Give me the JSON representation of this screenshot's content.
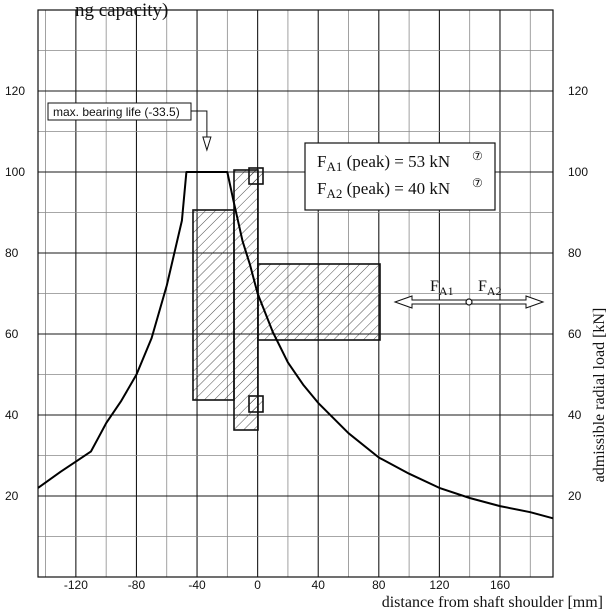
{
  "header": {
    "fragment": "ng capacity)"
  },
  "chart_data": {
    "type": "line",
    "title": "",
    "xlabel": "distance from shaft shoulder [mm]",
    "ylabel": "admissible radial load [kN]",
    "xlim": [
      -145,
      195
    ],
    "ylim": [
      0,
      140
    ],
    "grid": true,
    "x_ticks": [
      -120,
      -80,
      -40,
      0,
      40,
      80,
      120,
      160
    ],
    "x_tick_labels": [
      "-120",
      "-80",
      "-40",
      "0",
      "40",
      "80",
      "120",
      "160"
    ],
    "y_ticks": [
      20,
      40,
      60,
      80,
      100,
      120
    ],
    "y_tick_labels": [
      "20",
      "40",
      "60",
      "80",
      "100",
      "120"
    ],
    "series": [
      {
        "x": [
          -145,
          -130,
          -120,
          -110,
          -105,
          -100,
          -90,
          -80,
          -70,
          -60,
          -50,
          -47,
          -20,
          -16,
          -10,
          -5,
          0,
          10,
          20,
          30,
          40,
          60,
          80,
          100,
          120,
          140,
          160,
          180,
          195
        ],
        "y": [
          22,
          26,
          28.5,
          31,
          34.5,
          38,
          43.5,
          50,
          59,
          72,
          88,
          100,
          100,
          93,
          83,
          77,
          70,
          60.5,
          53,
          47.5,
          43,
          35.5,
          29.5,
          25.5,
          22,
          19.5,
          17.5,
          16,
          14.5
        ]
      }
    ],
    "annotations": {
      "max_life": {
        "text": "max. bearing life (-33.5)",
        "x": -33.5
      },
      "peak_loads": [
        {
          "force": "F",
          "sub": "A1",
          "text": "(peak) =  53 kN",
          "mark": "⑦"
        },
        {
          "force": "F",
          "sub": "A2",
          "text": "(peak) =  40 kN",
          "mark": "⑦"
        }
      ],
      "direction_labels": [
        {
          "force": "F",
          "sub": "A1"
        },
        {
          "force": "F",
          "sub": "A2"
        }
      ]
    }
  }
}
